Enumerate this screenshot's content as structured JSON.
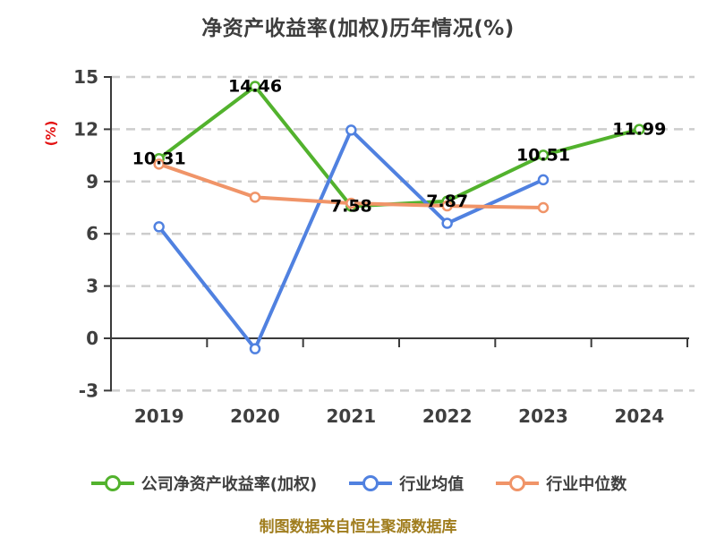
{
  "page": {
    "background": "#ffffff"
  },
  "title": {
    "text": "净资产收益率(加权)历年情况(%)"
  },
  "footer": {
    "text": "制图数据来自恒生聚源数据库",
    "color": "#a07d1e"
  },
  "chart_data": {
    "type": "line",
    "title": "净资产收益率(加权)历年情况(%)",
    "categories": [
      "2019",
      "2020",
      "2021",
      "2022",
      "2023",
      "2024"
    ],
    "ylabel": "(%)",
    "ylabel_color": "#e31212",
    "ylim": [
      -3,
      15
    ],
    "yticks": [
      15,
      12,
      9,
      6,
      3,
      0,
      -3
    ],
    "grid": "horizontal-dashed",
    "grid_color": "#cdcdcd",
    "axis_color": "#3a3a3a",
    "tick_label_color": "#3f3f3f",
    "data_label_color": "#000000",
    "legend_position": "bottom",
    "marker_fill": "#ffffff",
    "series": [
      {
        "name": "公司净资产收益率(加权)",
        "color": "#52b22d",
        "values": [
          10.31,
          14.46,
          7.58,
          7.87,
          10.51,
          11.99
        ],
        "point_labels": [
          "10.31",
          "14.46",
          "7.58",
          "7.87",
          "10.51",
          "11.99"
        ]
      },
      {
        "name": "行业均值",
        "color": "#5081e0",
        "values": [
          6.4,
          -0.6,
          11.95,
          6.6,
          9.1,
          null
        ]
      },
      {
        "name": "行业中位数",
        "color": "#f09468",
        "values": [
          10.0,
          8.1,
          7.75,
          7.6,
          7.5,
          null
        ]
      }
    ]
  }
}
